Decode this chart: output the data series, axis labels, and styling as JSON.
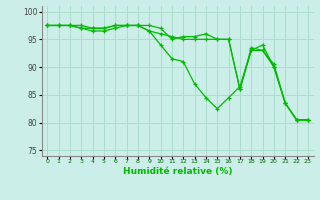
{
  "title": "",
  "xlabel": "Humidité relative (%)",
  "ylabel": "",
  "background_color": "#cceee8",
  "grid_color": "#aaddcc",
  "line_color": "#00bb00",
  "xlim": [
    -0.5,
    23.5
  ],
  "ylim": [
    74,
    101
  ],
  "yticks": [
    75,
    80,
    85,
    90,
    95,
    100
  ],
  "xticks": [
    0,
    1,
    2,
    3,
    4,
    5,
    6,
    7,
    8,
    9,
    10,
    11,
    12,
    13,
    14,
    15,
    16,
    17,
    18,
    19,
    20,
    21,
    22,
    23
  ],
  "series": [
    [
      97.5,
      97.5,
      97.5,
      97.5,
      97.0,
      97.0,
      97.5,
      97.5,
      97.5,
      97.5,
      97.0,
      95.0,
      95.5,
      95.5,
      96.0,
      95.0,
      95.0,
      86.0,
      93.0,
      94.0,
      90.0,
      83.5,
      80.5,
      80.5
    ],
    [
      97.5,
      97.5,
      97.5,
      97.0,
      97.0,
      97.0,
      97.5,
      97.5,
      97.5,
      96.5,
      94.0,
      91.5,
      91.0,
      87.0,
      84.5,
      82.5,
      84.5,
      86.5,
      93.0,
      93.0,
      90.5,
      83.5,
      80.5,
      80.5
    ],
    [
      97.5,
      97.5,
      97.5,
      97.0,
      96.5,
      96.5,
      97.0,
      97.5,
      97.5,
      96.5,
      96.0,
      95.5,
      95.0,
      95.0,
      95.0,
      95.0,
      95.0,
      86.0,
      93.5,
      93.0,
      90.0,
      83.5,
      80.5,
      80.5
    ]
  ]
}
